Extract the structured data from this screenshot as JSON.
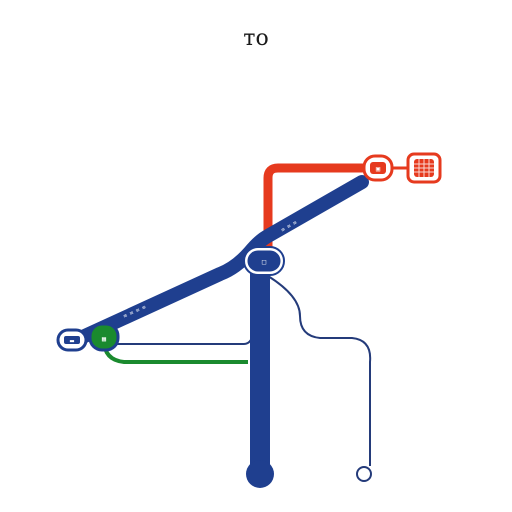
{
  "title": "то",
  "colors": {
    "blue": "#1f3f8f",
    "red": "#e63a1e",
    "green": "#1a8a2e",
    "navy": "#243b7a"
  },
  "labels": {
    "blue_track_upper": "≡ ≡ ≡",
    "blue_track_lower": "≡ ≡ ≡ ≡",
    "hub_node": "□",
    "left_node": "▬",
    "green_node": "▦",
    "red_node": "▣"
  },
  "icons": {
    "terminal": "circle-terminal-icon",
    "loop": "loop-end-icon",
    "grid": "grid-sign-icon"
  }
}
